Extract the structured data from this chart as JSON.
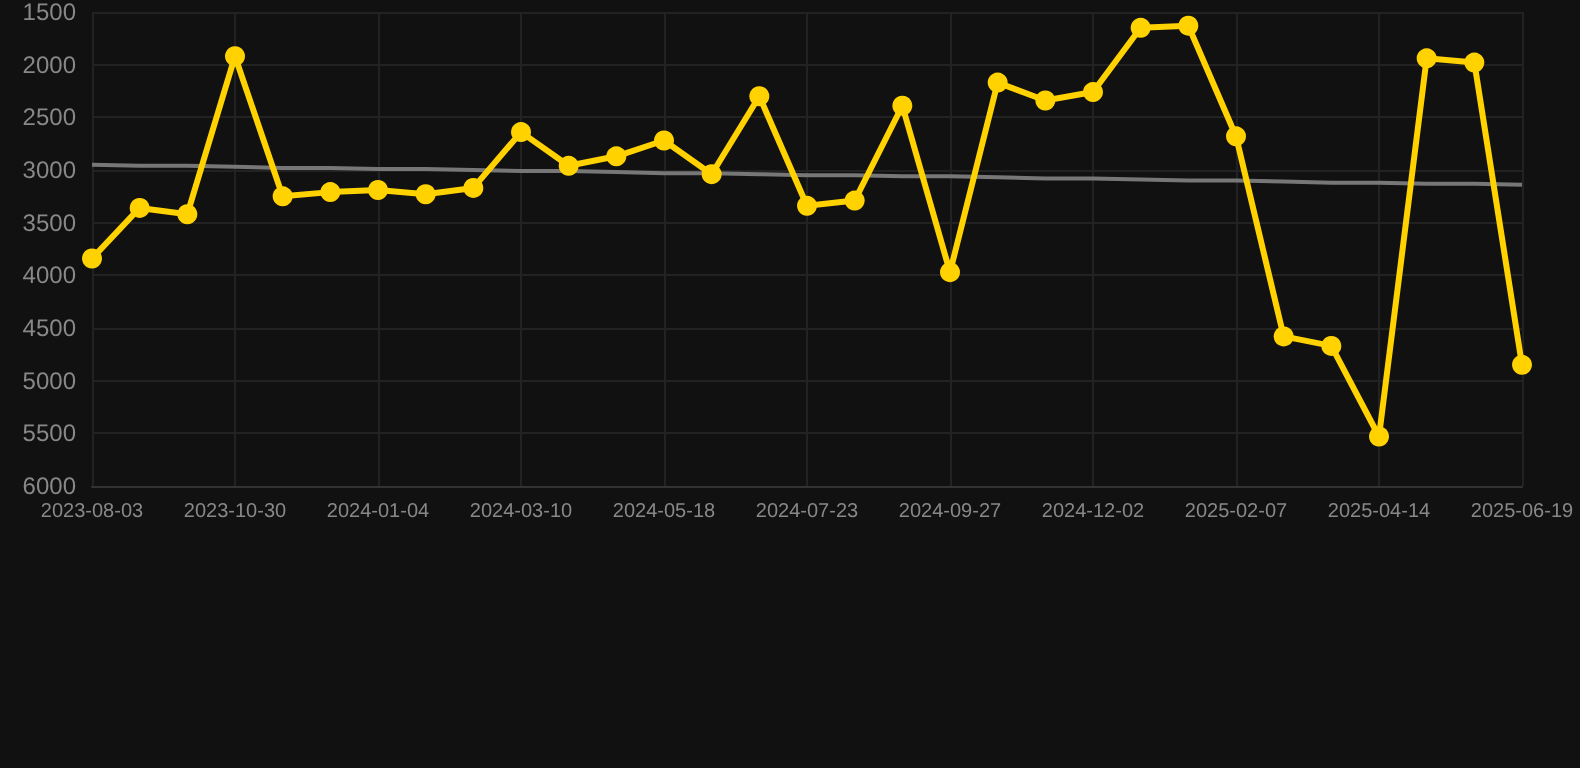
{
  "chart_data": {
    "type": "line",
    "categories": [
      "2023-08-03",
      null,
      null,
      "2023-10-30",
      null,
      null,
      "2024-01-04",
      null,
      null,
      "2024-03-10",
      null,
      null,
      "2024-05-18",
      null,
      null,
      "2024-07-23",
      null,
      null,
      "2024-09-27",
      null,
      null,
      "2024-12-02",
      null,
      null,
      "2025-02-07",
      null,
      null,
      "2025-04-14",
      null,
      null,
      "2025-06-19"
    ],
    "series": [
      {
        "color": "#ffd200",
        "values": [
          3840,
          3360,
          3420,
          1920,
          3250,
          3210,
          3190,
          3230,
          3170,
          2640,
          2960,
          2870,
          2720,
          3040,
          2300,
          3340,
          3290,
          2390,
          3970,
          2170,
          2340,
          2260,
          1650,
          1630,
          2680,
          4580,
          4670,
          5530,
          1940,
          1980,
          4850
        ]
      },
      {
        "type": "line",
        "color": "#777777",
        "values": [
          2950,
          2960,
          2960,
          2970,
          2980,
          2980,
          2990,
          2990,
          3000,
          3010,
          3010,
          3020,
          3030,
          3030,
          3040,
          3050,
          3050,
          3060,
          3060,
          3070,
          3080,
          3080,
          3090,
          3100,
          3100,
          3110,
          3120,
          3120,
          3130,
          3130,
          3140
        ],
        "marker": "none"
      }
    ],
    "ylim": [
      6000,
      1500
    ],
    "yticks": [
      1500,
      2000,
      2500,
      3000,
      3500,
      4000,
      4500,
      5000,
      5500,
      6000
    ],
    "grid": true,
    "marker": "circle",
    "line_style": "solid"
  }
}
